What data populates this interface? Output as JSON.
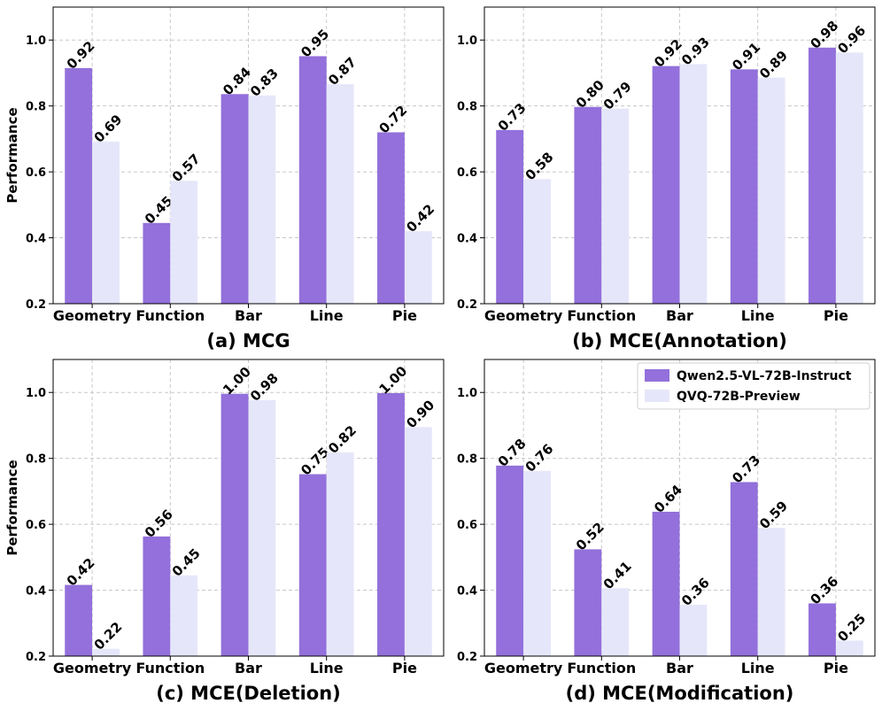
{
  "legend": {
    "series": [
      "Qwen2.5-VL-72B-Instruct",
      "QVQ-72B-Preview"
    ]
  },
  "colors": {
    "series": [
      "#9370DB",
      "#E6E6FA"
    ],
    "grid": "#c8c8c8",
    "axis": "#000000"
  },
  "chart_data": [
    {
      "type": "bar",
      "title": "(a) MCG",
      "ylabel": "Performance",
      "xlabel": "",
      "ylim": [
        0.2,
        1.1
      ],
      "yticks": [
        0.2,
        0.4,
        0.6,
        0.8,
        1.0
      ],
      "ytick_labels": [
        "0.2",
        "0.4",
        "0.6",
        "0.8",
        "1.0"
      ],
      "grid": true,
      "categories": [
        "Geometry",
        "Function",
        "Bar",
        "Line",
        "Pie"
      ],
      "series": [
        {
          "name": "Qwen2.5-VL-72B-Instruct",
          "values": [
            0.915,
            0.445,
            0.836,
            0.951,
            0.72
          ],
          "labels": [
            "0.92",
            "0.45",
            "0.84",
            "0.95",
            "0.72"
          ]
        },
        {
          "name": "QVQ-72B-Preview",
          "values": [
            0.692,
            0.573,
            0.832,
            0.866,
            0.42
          ],
          "labels": [
            "0.69",
            "0.57",
            "0.83",
            "0.87",
            "0.42"
          ]
        }
      ]
    },
    {
      "type": "bar",
      "title": "(b) MCE(Annotation)",
      "ylabel": "",
      "xlabel": "",
      "ylim": [
        0.2,
        1.1
      ],
      "yticks": [
        0.2,
        0.4,
        0.6,
        0.8,
        1.0
      ],
      "ytick_labels": [
        "0.2",
        "0.4",
        "0.6",
        "0.8",
        "1.0"
      ],
      "grid": true,
      "categories": [
        "Geometry",
        "Function",
        "Bar",
        "Line",
        "Pie"
      ],
      "series": [
        {
          "name": "Qwen2.5-VL-72B-Instruct",
          "values": [
            0.727,
            0.797,
            0.921,
            0.911,
            0.977
          ],
          "labels": [
            "0.73",
            "0.80",
            "0.92",
            "0.91",
            "0.98"
          ]
        },
        {
          "name": "QVQ-72B-Preview",
          "values": [
            0.578,
            0.792,
            0.927,
            0.886,
            0.962
          ],
          "labels": [
            "0.58",
            "0.79",
            "0.93",
            "0.89",
            "0.96"
          ]
        }
      ]
    },
    {
      "type": "bar",
      "title": "(c) MCE(Deletion)",
      "ylabel": "Performance",
      "xlabel": "",
      "ylim": [
        0.2,
        1.1
      ],
      "yticks": [
        0.2,
        0.4,
        0.6,
        0.8,
        1.0
      ],
      "ytick_labels": [
        "0.2",
        "0.4",
        "0.6",
        "0.8",
        "1.0"
      ],
      "grid": true,
      "categories": [
        "Geometry",
        "Function",
        "Bar",
        "Line",
        "Pie"
      ],
      "series": [
        {
          "name": "Qwen2.5-VL-72B-Instruct",
          "values": [
            0.416,
            0.563,
            0.996,
            0.752,
            0.998
          ],
          "labels": [
            "0.42",
            "0.56",
            "1.00",
            "0.75",
            "1.00"
          ]
        },
        {
          "name": "QVQ-72B-Preview",
          "values": [
            0.222,
            0.445,
            0.977,
            0.818,
            0.895
          ],
          "labels": [
            "0.22",
            "0.45",
            "0.98",
            "0.82",
            "0.90"
          ]
        }
      ]
    },
    {
      "type": "bar",
      "title": "(d) MCE(Modification)",
      "ylabel": "",
      "xlabel": "",
      "ylim": [
        0.2,
        1.1
      ],
      "yticks": [
        0.2,
        0.4,
        0.6,
        0.8,
        1.0
      ],
      "ytick_labels": [
        "0.2",
        "0.4",
        "0.6",
        "0.8",
        "1.0"
      ],
      "grid": true,
      "legend_position": "top-right",
      "categories": [
        "Geometry",
        "Function",
        "Bar",
        "Line",
        "Pie"
      ],
      "series": [
        {
          "name": "Qwen2.5-VL-72B-Instruct",
          "values": [
            0.778,
            0.524,
            0.638,
            0.728,
            0.36
          ],
          "labels": [
            "0.78",
            "0.52",
            "0.64",
            "0.73",
            "0.36"
          ]
        },
        {
          "name": "QVQ-72B-Preview",
          "values": [
            0.762,
            0.406,
            0.356,
            0.589,
            0.247
          ],
          "labels": [
            "0.76",
            "0.41",
            "0.36",
            "0.59",
            "0.25"
          ]
        }
      ]
    }
  ]
}
